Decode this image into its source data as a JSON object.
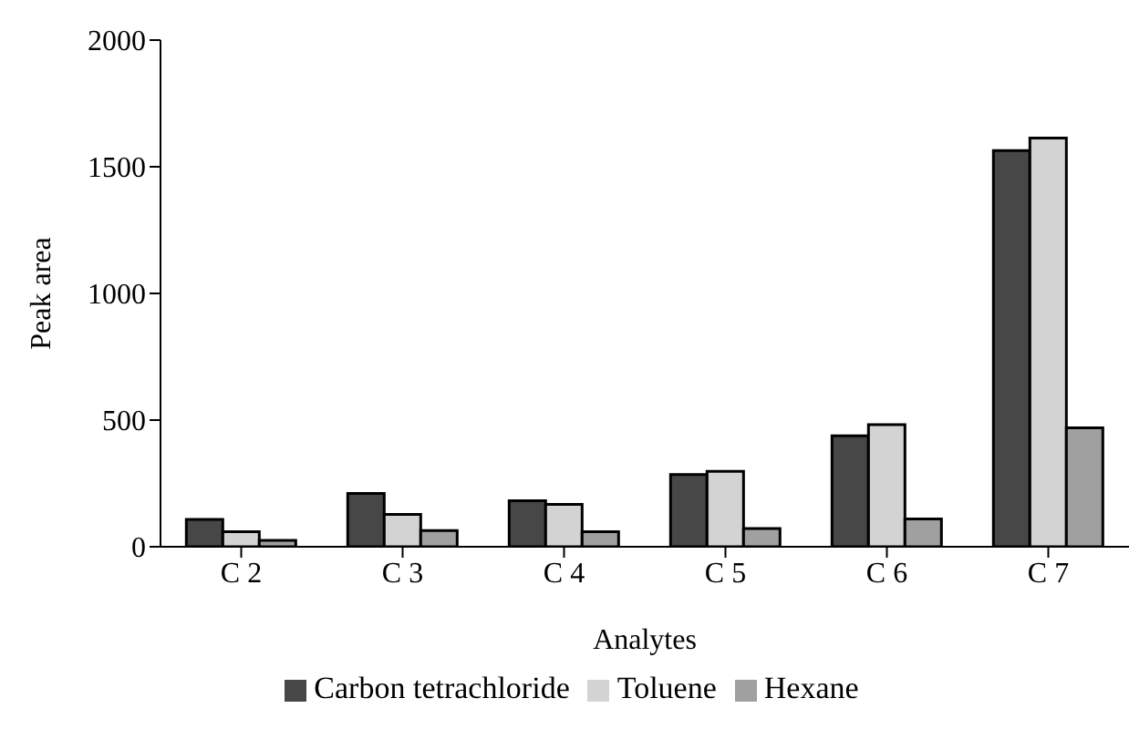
{
  "chart_data": {
    "type": "bar",
    "xlabel": "Analytes",
    "ylabel": "Peak area",
    "categories": [
      "C 2",
      "C 3",
      "C 4",
      "C 5",
      "C 6",
      "C 7"
    ],
    "series": [
      {
        "name": "Carbon tetrachloride",
        "color": "#474747",
        "values": [
          108,
          210,
          182,
          285,
          438,
          1564
        ]
      },
      {
        "name": "Toluene",
        "color": "#d3d3d3",
        "values": [
          59,
          128,
          167,
          298,
          482,
          1613
        ]
      },
      {
        "name": "Hexane",
        "color": "#a0a0a0",
        "values": [
          25,
          64,
          59,
          72,
          110,
          469
        ]
      }
    ],
    "ylim": [
      0,
      2000
    ],
    "yticks": [
      0,
      500,
      1000,
      1500,
      2000
    ],
    "grid": false,
    "legend": "bottom"
  }
}
